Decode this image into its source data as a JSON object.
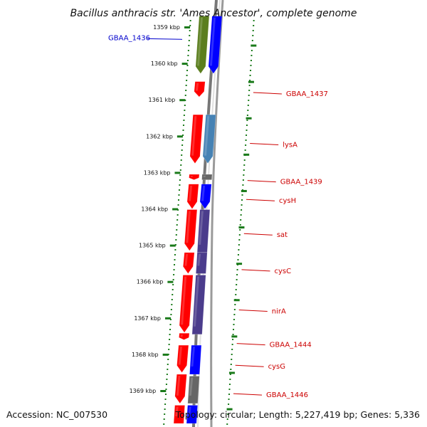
{
  "title": "Bacillus anthracis str. 'Ames Ancestor', complete genome",
  "accession_text": "Accession: NC_007530",
  "topology_text": "Topology: circular; Length: 5,227,419 bp; Genes: 5,336",
  "ruler": {
    "ticks": [
      {
        "label": "1359 kbp",
        "pos": 1359
      },
      {
        "label": "1360 kbp",
        "pos": 1360
      },
      {
        "label": "1361 kbp",
        "pos": 1361
      },
      {
        "label": "1362 kbp",
        "pos": 1362
      },
      {
        "label": "1363 kbp",
        "pos": 1363
      },
      {
        "label": "1364 kbp",
        "pos": 1364
      },
      {
        "label": "1365 kbp",
        "pos": 1365
      },
      {
        "label": "1366 kbp",
        "pos": 1366
      },
      {
        "label": "1367 kbp",
        "pos": 1367
      },
      {
        "label": "1368 kbp",
        "pos": 1368
      },
      {
        "label": "1369 kbp",
        "pos": 1369
      }
    ]
  },
  "gene_labels": [
    {
      "text": "GBAA_1436",
      "side": "left",
      "color": "#0000cc",
      "pos": 1359.3
    },
    {
      "text": "GBAA_1437",
      "side": "right",
      "color": "#cc0000",
      "pos": 1360.8
    },
    {
      "text": "lysA",
      "side": "right",
      "color": "#cc0000",
      "pos": 1362.2
    },
    {
      "text": "GBAA_1439",
      "side": "right",
      "color": "#cc0000",
      "pos": 1363.22
    },
    {
      "text": "cysH",
      "side": "right",
      "color": "#cc0000",
      "pos": 1363.74
    },
    {
      "text": "sat",
      "side": "right",
      "color": "#cc0000",
      "pos": 1364.68
    },
    {
      "text": "cysC",
      "side": "right",
      "color": "#cc0000",
      "pos": 1365.67
    },
    {
      "text": "nirA",
      "side": "right",
      "color": "#cc0000",
      "pos": 1366.78
    },
    {
      "text": "GBAA_1444",
      "side": "right",
      "color": "#cc0000",
      "pos": 1367.7
    },
    {
      "text": "cysG",
      "side": "right",
      "color": "#cc0000",
      "pos": 1368.3
    },
    {
      "text": "GBAA_1446",
      "side": "right",
      "color": "#cc0000",
      "pos": 1369.08
    }
  ],
  "tracks": [
    {
      "name": "cds",
      "start": 1360.5,
      "end": 1369.85,
      "color": "#ff0000"
    },
    {
      "name": "cog",
      "start": 1360.95,
      "end": 1369.85,
      "color": "#4b4b8c"
    }
  ],
  "features": [
    {
      "track": 0,
      "start": 1358.7,
      "end": 1360.28,
      "color": "#5b7e1e",
      "arrow": "down"
    },
    {
      "track": 1,
      "start": 1358.7,
      "end": 1360.28,
      "color": "#0000ff",
      "arrow": "down"
    },
    {
      "track": 0,
      "start": 1360.5,
      "end": 1360.92,
      "color": "#ff0000",
      "arrow": "down"
    },
    {
      "track": 0,
      "start": 1361.41,
      "end": 1362.75,
      "color": "#ff0000",
      "arrow": "down"
    },
    {
      "track": 1,
      "start": 1361.41,
      "end": 1362.75,
      "color": "#4682b4",
      "arrow": "down"
    },
    {
      "track": 0,
      "start": 1363.05,
      "end": 1363.2,
      "color": "#ff0000",
      "arrow": "down"
    },
    {
      "track": 1,
      "start": 1363.05,
      "end": 1363.2,
      "color": "#666666",
      "arrow": "none"
    },
    {
      "track": 0,
      "start": 1363.32,
      "end": 1364.0,
      "color": "#ff0000",
      "arrow": "down"
    },
    {
      "track": 1,
      "start": 1363.32,
      "end": 1364.0,
      "color": "#0000ff",
      "arrow": "down"
    },
    {
      "track": 0,
      "start": 1364.02,
      "end": 1365.15,
      "color": "#ff0000",
      "arrow": "down"
    },
    {
      "track": 1,
      "start": 1364.02,
      "end": 1365.2,
      "color": "#4b3c8c",
      "arrow": "none"
    },
    {
      "track": 0,
      "start": 1365.2,
      "end": 1365.78,
      "color": "#ff0000",
      "arrow": "down"
    },
    {
      "track": 1,
      "start": 1365.2,
      "end": 1365.78,
      "color": "#4b3c8c",
      "arrow": "none"
    },
    {
      "track": 0,
      "start": 1365.82,
      "end": 1367.4,
      "color": "#ff0000",
      "arrow": "down"
    },
    {
      "track": 1,
      "start": 1365.82,
      "end": 1367.45,
      "color": "#4b3c8c",
      "arrow": "none"
    },
    {
      "track": 0,
      "start": 1367.42,
      "end": 1367.6,
      "color": "#ff0000",
      "arrow": "down"
    },
    {
      "track": 0,
      "start": 1367.75,
      "end": 1368.5,
      "color": "#ff0000",
      "arrow": "down"
    },
    {
      "track": 1,
      "start": 1367.75,
      "end": 1368.55,
      "color": "#0000ff",
      "arrow": "none"
    },
    {
      "track": 0,
      "start": 1368.55,
      "end": 1369.35,
      "color": "#ff0000",
      "arrow": "down"
    },
    {
      "track": 1,
      "start": 1368.6,
      "end": 1369.35,
      "color": "#666666",
      "arrow": "none"
    },
    {
      "track": 0,
      "start": 1369.4,
      "end": 1369.9,
      "color": "#ff0000",
      "arrow": "none"
    },
    {
      "track": 1,
      "start": 1369.4,
      "end": 1369.9,
      "color": "#0000ff",
      "arrow": "none"
    }
  ],
  "colors": {
    "ruler_dots": "#1a7a1a",
    "backbone": "#777777",
    "label_blue": "#0000cc",
    "label_red": "#cc0000"
  }
}
